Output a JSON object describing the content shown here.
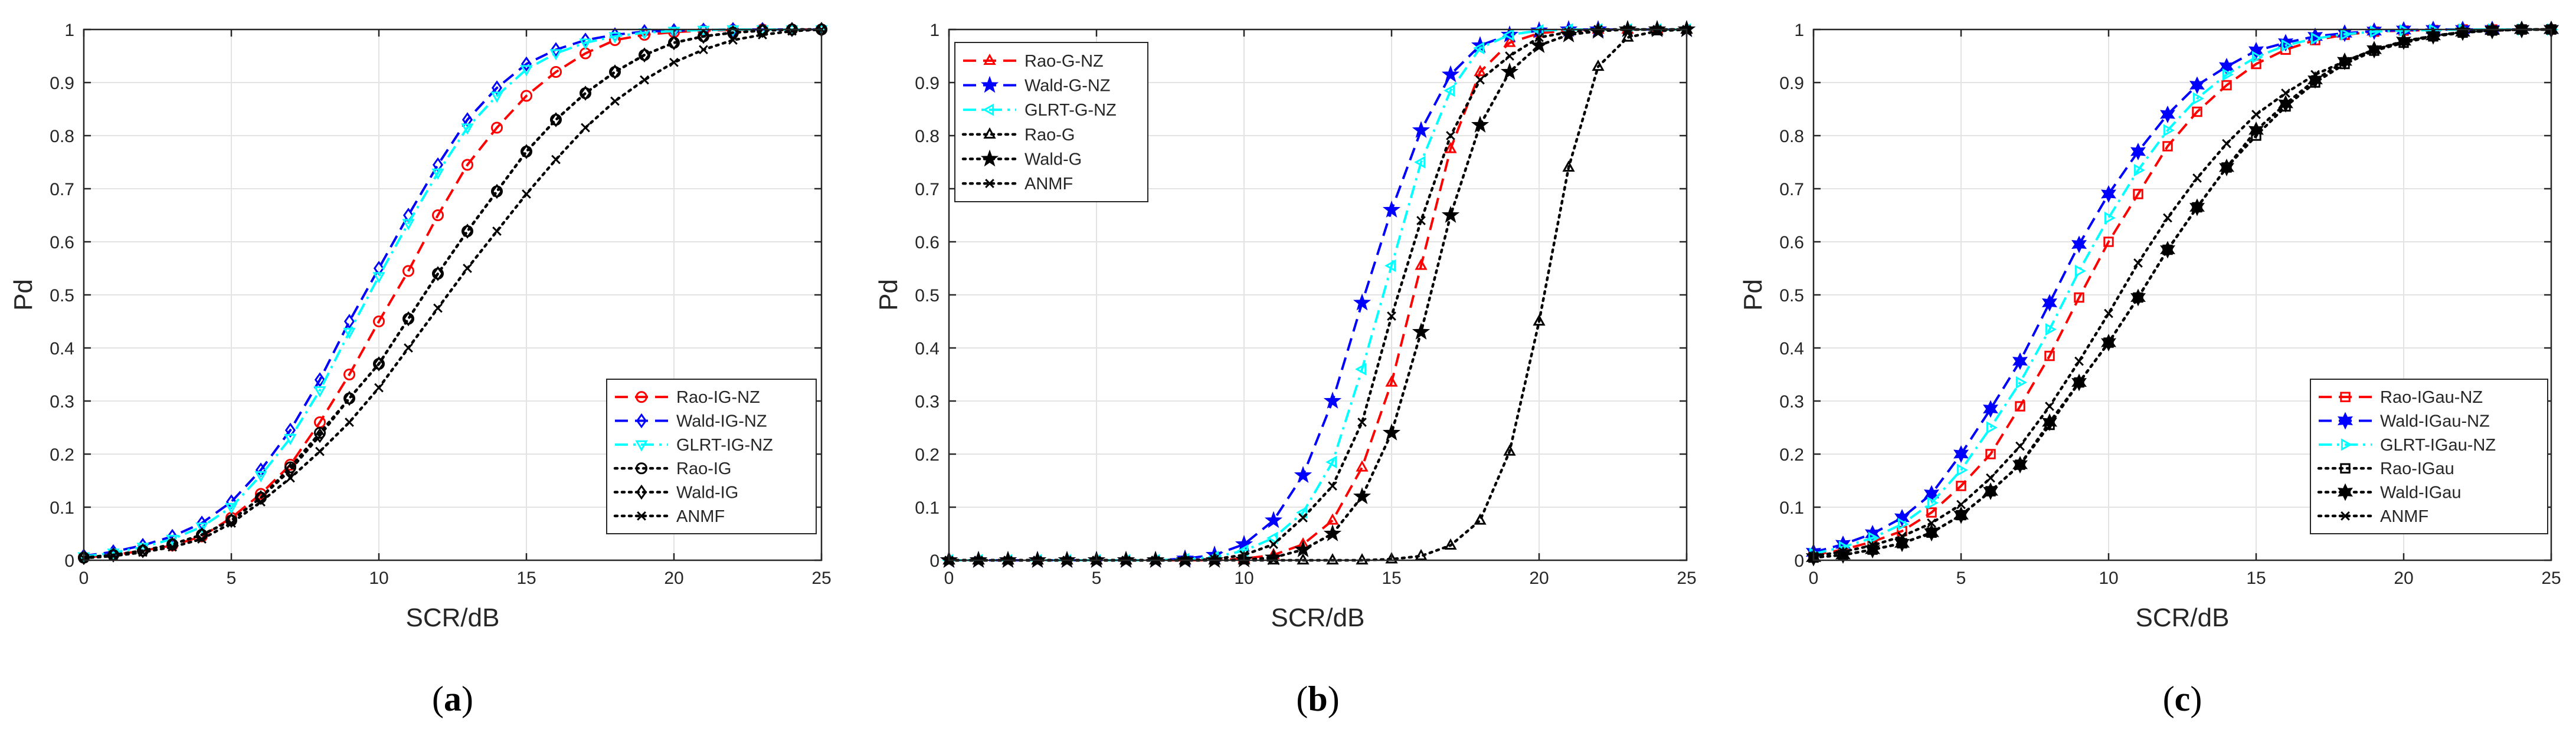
{
  "figure": {
    "panels": [
      {
        "label": "(a)",
        "letter": "a"
      },
      {
        "label": "(b)",
        "letter": "b"
      },
      {
        "label": "(c)",
        "letter": "c"
      }
    ]
  },
  "colors": {
    "red": "#ff0000",
    "blue": "#0000ff",
    "cyan": "#00ffff",
    "black": "#000000",
    "grid": "#e3e3e3",
    "axis": "#262626"
  },
  "chart_data": [
    {
      "type": "line",
      "panel": "a",
      "xlabel": "SCR/dB",
      "ylabel": "Pd",
      "xlim": [
        0,
        25
      ],
      "ylim": [
        0,
        1
      ],
      "xticks": [
        0,
        5,
        10,
        15,
        20,
        25
      ],
      "yticks": [
        0,
        0.1,
        0.2,
        0.3,
        0.4,
        0.5,
        0.6,
        0.7,
        0.8,
        0.9,
        1
      ],
      "ytick_labels": [
        "0",
        "0.1",
        "0.2",
        "0.3",
        "0.4",
        "0.5",
        "0.6",
        "0.7",
        "0.8",
        "0.9",
        "1"
      ],
      "grid": true,
      "legend_position": "bottom-right",
      "x": [
        0,
        1,
        2,
        3,
        4,
        5,
        6,
        7,
        8,
        9,
        10,
        11,
        12,
        13,
        14,
        15,
        16,
        17,
        18,
        19,
        20,
        21,
        22,
        23,
        24,
        25
      ],
      "series": [
        {
          "name": "Rao-IG-NZ",
          "color": "#ff0000",
          "dash": "dashed",
          "marker": "circle",
          "values": [
            0.005,
            0.01,
            0.018,
            0.028,
            0.045,
            0.08,
            0.125,
            0.18,
            0.26,
            0.35,
            0.45,
            0.545,
            0.65,
            0.745,
            0.815,
            0.875,
            0.92,
            0.955,
            0.98,
            0.99,
            0.995,
            0.998,
            0.999,
            1,
            1,
            1
          ]
        },
        {
          "name": "Wald-IG-NZ",
          "color": "#0000ff",
          "dash": "dashed",
          "marker": "diamond",
          "values": [
            0.008,
            0.016,
            0.028,
            0.045,
            0.07,
            0.11,
            0.17,
            0.245,
            0.34,
            0.45,
            0.55,
            0.65,
            0.745,
            0.83,
            0.89,
            0.935,
            0.962,
            0.98,
            0.99,
            0.996,
            0.998,
            0.999,
            1,
            1,
            1,
            1
          ]
        },
        {
          "name": "GLRT-IG-NZ",
          "color": "#00ffff",
          "dash": "dashdot",
          "marker": "triangle-down",
          "values": [
            0.007,
            0.014,
            0.025,
            0.04,
            0.063,
            0.1,
            0.16,
            0.23,
            0.32,
            0.43,
            0.535,
            0.635,
            0.73,
            0.815,
            0.875,
            0.925,
            0.955,
            0.975,
            0.987,
            0.994,
            0.997,
            0.999,
            1,
            1,
            1,
            1
          ]
        },
        {
          "name": "Rao-IG",
          "color": "#000000",
          "dash": "dotted",
          "marker": "circle",
          "values": [
            0.005,
            0.01,
            0.018,
            0.03,
            0.048,
            0.075,
            0.118,
            0.175,
            0.24,
            0.305,
            0.37,
            0.455,
            0.54,
            0.62,
            0.695,
            0.77,
            0.83,
            0.88,
            0.92,
            0.952,
            0.975,
            0.987,
            0.994,
            0.998,
            1,
            1
          ]
        },
        {
          "name": "Wald-IG",
          "color": "#000000",
          "dash": "dotted",
          "marker": "diamond",
          "values": [
            0.005,
            0.01,
            0.018,
            0.03,
            0.048,
            0.075,
            0.118,
            0.17,
            0.235,
            0.305,
            0.37,
            0.455,
            0.54,
            0.62,
            0.695,
            0.77,
            0.83,
            0.88,
            0.92,
            0.952,
            0.975,
            0.987,
            0.994,
            0.998,
            1,
            1
          ]
        },
        {
          "name": "ANMF",
          "color": "#000000",
          "dash": "dotted",
          "marker": "x",
          "values": [
            0.004,
            0.008,
            0.015,
            0.025,
            0.04,
            0.07,
            0.11,
            0.155,
            0.205,
            0.26,
            0.325,
            0.4,
            0.475,
            0.55,
            0.62,
            0.69,
            0.755,
            0.815,
            0.865,
            0.905,
            0.938,
            0.962,
            0.98,
            0.99,
            0.997,
            1
          ]
        }
      ]
    },
    {
      "type": "line",
      "panel": "b",
      "xlabel": "SCR/dB",
      "ylabel": "Pd",
      "xlim": [
        0,
        25
      ],
      "ylim": [
        0,
        1
      ],
      "xticks": [
        0,
        5,
        10,
        15,
        20,
        25
      ],
      "yticks": [
        0,
        0.1,
        0.2,
        0.3,
        0.4,
        0.5,
        0.6,
        0.7,
        0.8,
        0.9,
        1
      ],
      "ytick_labels": [
        "0",
        "0.1",
        "0.2",
        "0.3",
        "0.4",
        "0.5",
        "0.6",
        "0.7",
        "0.8",
        "0.9",
        "1"
      ],
      "grid": true,
      "legend_position": "top-left",
      "x": [
        0,
        1,
        2,
        3,
        4,
        5,
        6,
        7,
        8,
        9,
        10,
        11,
        12,
        13,
        14,
        15,
        16,
        17,
        18,
        19,
        20,
        21,
        22,
        23,
        24,
        25
      ],
      "series": [
        {
          "name": "Rao-G-NZ",
          "color": "#ff0000",
          "dash": "dashed",
          "marker": "triangle-up",
          "values": [
            0,
            0,
            0,
            0,
            0,
            0,
            0,
            0,
            0,
            0,
            0.003,
            0.01,
            0.03,
            0.075,
            0.175,
            0.335,
            0.555,
            0.775,
            0.92,
            0.975,
            0.993,
            0.998,
            1,
            1,
            1,
            1
          ]
        },
        {
          "name": "Wald-G-NZ",
          "color": "#0000ff",
          "dash": "dashed",
          "marker": "star",
          "values": [
            0,
            0,
            0,
            0,
            0,
            0,
            0,
            0,
            0.003,
            0.01,
            0.03,
            0.075,
            0.16,
            0.3,
            0.485,
            0.66,
            0.81,
            0.915,
            0.97,
            0.99,
            0.998,
            1,
            1,
            1,
            1,
            1
          ]
        },
        {
          "name": "GLRT-G-NZ",
          "color": "#00ffff",
          "dash": "dashdot",
          "marker": "triangle-left",
          "values": [
            0,
            0,
            0,
            0,
            0,
            0,
            0,
            0,
            0.002,
            0.006,
            0.018,
            0.042,
            0.09,
            0.185,
            0.36,
            0.555,
            0.75,
            0.885,
            0.965,
            0.99,
            0.998,
            1,
            1,
            1,
            1,
            1
          ]
        },
        {
          "name": "Rao-G",
          "color": "#000000",
          "dash": "dotted",
          "marker": "triangle-up",
          "values": [
            0,
            0,
            0,
            0,
            0,
            0,
            0,
            0,
            0,
            0,
            0,
            0,
            0,
            0,
            0,
            0.002,
            0.008,
            0.028,
            0.075,
            0.205,
            0.45,
            0.74,
            0.93,
            0.985,
            0.997,
            1
          ]
        },
        {
          "name": "Wald-G",
          "color": "#000000",
          "dash": "dotted",
          "marker": "star",
          "values": [
            0,
            0,
            0,
            0,
            0,
            0,
            0,
            0,
            0,
            0,
            0.001,
            0.005,
            0.02,
            0.05,
            0.12,
            0.24,
            0.43,
            0.65,
            0.82,
            0.92,
            0.97,
            0.99,
            0.997,
            1,
            1,
            1
          ]
        },
        {
          "name": "ANMF",
          "color": "#000000",
          "dash": "dotted",
          "marker": "x",
          "values": [
            0,
            0,
            0,
            0,
            0,
            0,
            0,
            0,
            0,
            0.002,
            0.01,
            0.03,
            0.08,
            0.14,
            0.26,
            0.46,
            0.64,
            0.8,
            0.905,
            0.95,
            0.985,
            0.995,
            1,
            1,
            1,
            1
          ]
        }
      ]
    },
    {
      "type": "line",
      "panel": "c",
      "xlabel": "SCR/dB",
      "ylabel": "Pd",
      "xlim": [
        0,
        25
      ],
      "ylim": [
        0,
        1
      ],
      "xticks": [
        0,
        5,
        10,
        15,
        20,
        25
      ],
      "yticks": [
        0,
        0.1,
        0.2,
        0.3,
        0.4,
        0.5,
        0.6,
        0.7,
        0.8,
        0.9,
        1
      ],
      "ytick_labels": [
        "0",
        "0.1",
        "0.2",
        "0.3",
        "0.4",
        "0.5",
        "0.6",
        "0.7",
        "0.8",
        "0.9",
        "1"
      ],
      "grid": true,
      "legend_position": "bottom-right",
      "x": [
        0,
        1,
        2,
        3,
        4,
        5,
        6,
        7,
        8,
        9,
        10,
        11,
        12,
        13,
        14,
        15,
        16,
        17,
        18,
        19,
        20,
        21,
        22,
        23,
        24,
        25
      ],
      "series": [
        {
          "name": "Rao-IGau-NZ",
          "color": "#ff0000",
          "dash": "dashed",
          "marker": "square",
          "values": [
            0.01,
            0.02,
            0.035,
            0.055,
            0.09,
            0.14,
            0.2,
            0.29,
            0.385,
            0.495,
            0.6,
            0.69,
            0.78,
            0.845,
            0.895,
            0.935,
            0.962,
            0.98,
            0.99,
            0.996,
            0.998,
            0.999,
            1,
            1,
            1,
            1
          ]
        },
        {
          "name": "Wald-IGau-NZ",
          "color": "#0000ff",
          "dash": "dashed",
          "marker": "hexagram",
          "values": [
            0.015,
            0.03,
            0.05,
            0.08,
            0.125,
            0.2,
            0.285,
            0.375,
            0.485,
            0.595,
            0.69,
            0.77,
            0.84,
            0.895,
            0.93,
            0.96,
            0.975,
            0.987,
            0.993,
            0.997,
            0.999,
            1,
            1,
            1,
            1,
            1
          ]
        },
        {
          "name": "GLRT-IGau-NZ",
          "color": "#00ffff",
          "dash": "dashdot",
          "marker": "triangle-right",
          "values": [
            0.012,
            0.025,
            0.042,
            0.068,
            0.108,
            0.17,
            0.25,
            0.335,
            0.435,
            0.545,
            0.645,
            0.735,
            0.81,
            0.87,
            0.915,
            0.948,
            0.97,
            0.983,
            0.991,
            0.996,
            0.998,
            0.999,
            1,
            1,
            1,
            1
          ]
        },
        {
          "name": "Rao-IGau",
          "color": "#000000",
          "dash": "dotted",
          "marker": "square",
          "values": [
            0.005,
            0.01,
            0.02,
            0.032,
            0.052,
            0.085,
            0.13,
            0.18,
            0.255,
            0.335,
            0.41,
            0.495,
            0.585,
            0.665,
            0.74,
            0.8,
            0.855,
            0.9,
            0.935,
            0.96,
            0.975,
            0.987,
            0.994,
            0.998,
            1,
            1
          ]
        },
        {
          "name": "Wald-IGau",
          "color": "#000000",
          "dash": "dotted",
          "marker": "hexagram",
          "values": [
            0.005,
            0.01,
            0.02,
            0.032,
            0.052,
            0.085,
            0.13,
            0.18,
            0.26,
            0.335,
            0.41,
            0.495,
            0.585,
            0.665,
            0.74,
            0.81,
            0.86,
            0.905,
            0.94,
            0.962,
            0.978,
            0.988,
            0.995,
            0.998,
            1,
            1
          ]
        },
        {
          "name": "ANMF",
          "color": "#000000",
          "dash": "dotted",
          "marker": "x",
          "values": [
            0.008,
            0.016,
            0.028,
            0.045,
            0.07,
            0.105,
            0.155,
            0.215,
            0.29,
            0.375,
            0.465,
            0.56,
            0.645,
            0.72,
            0.785,
            0.84,
            0.88,
            0.915,
            0.94,
            0.962,
            0.977,
            0.988,
            0.995,
            0.998,
            1,
            1
          ]
        }
      ]
    }
  ]
}
